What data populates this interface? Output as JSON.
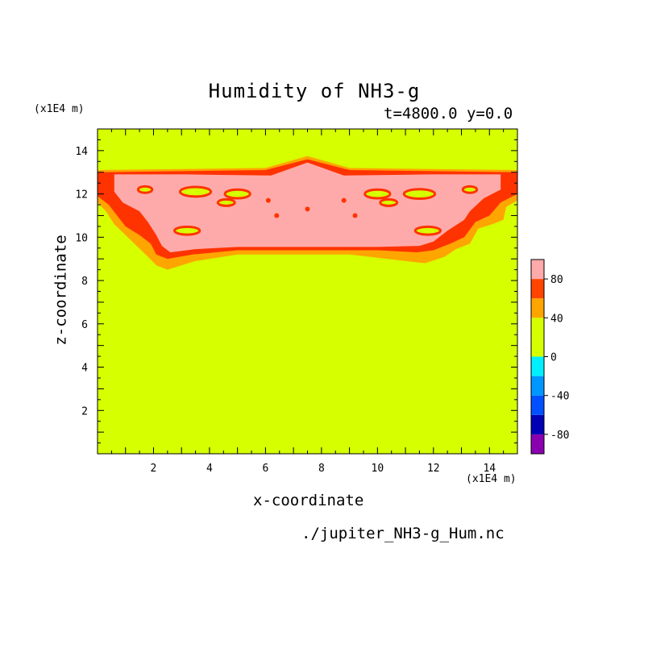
{
  "chart_data": {
    "type": "heatmap",
    "title": "Humidity of NH3-g",
    "subtitle": "t=4800.0 y=0.0",
    "xlabel": "x-coordinate",
    "ylabel": "z-coordinate",
    "x_unit": "(x1E4 m)",
    "y_unit": "(x1E4 m)",
    "source": "./jupiter_NH3-g_Hum.nc",
    "xlim": [
      0,
      15
    ],
    "ylim": [
      0,
      15
    ],
    "x_ticks": [
      2,
      4,
      6,
      8,
      10,
      12,
      14
    ],
    "y_ticks": [
      2,
      4,
      6,
      8,
      10,
      12,
      14
    ],
    "colorbar": {
      "range": [
        -100,
        100
      ],
      "tick_labels": [
        "80",
        "40",
        "0",
        "-40",
        "-80"
      ],
      "tick_values": [
        80,
        40,
        0,
        -40,
        -80
      ],
      "bins": [
        {
          "min": -100,
          "max": -80,
          "color": "#8a00b0"
        },
        {
          "min": -80,
          "max": -60,
          "color": "#0000b4"
        },
        {
          "min": -60,
          "max": -40,
          "color": "#0050ff"
        },
        {
          "min": -40,
          "max": -20,
          "color": "#0096ff"
        },
        {
          "min": -20,
          "max": 0,
          "color": "#00f0ff"
        },
        {
          "min": 0,
          "max": 20,
          "color": "#d6ff00"
        },
        {
          "min": 20,
          "max": 40,
          "color": "#d6ff00"
        },
        {
          "min": 40,
          "max": 60,
          "color": "#ffa500"
        },
        {
          "min": 60,
          "max": 80,
          "color": "#ff4500"
        },
        {
          "min": 80,
          "max": 100,
          "color": "#ffaaaa"
        }
      ]
    },
    "regions": [
      {
        "level": "orange (40-60)",
        "color": "#ffa500",
        "outline": [
          [
            0,
            13.1
          ],
          [
            3,
            13.15
          ],
          [
            6,
            13.2
          ],
          [
            7.5,
            13.75
          ],
          [
            9,
            13.2
          ],
          [
            12,
            13.15
          ],
          [
            15,
            13.1
          ],
          [
            15,
            11.7
          ],
          [
            14.6,
            11.4
          ],
          [
            14.5,
            10.8
          ],
          [
            14.1,
            10.6
          ],
          [
            13.6,
            10.4
          ],
          [
            13.3,
            9.7
          ],
          [
            12.8,
            9.45
          ],
          [
            12.4,
            9.1
          ],
          [
            11.7,
            8.8
          ],
          [
            11,
            8.9
          ],
          [
            9,
            9.2
          ],
          [
            7.5,
            9.2
          ],
          [
            5,
            9.2
          ],
          [
            3.5,
            8.9
          ],
          [
            2.5,
            8.5
          ],
          [
            2.1,
            8.7
          ],
          [
            1.8,
            9.1
          ],
          [
            1.4,
            9.6
          ],
          [
            1,
            10.1
          ],
          [
            0.6,
            10.6
          ],
          [
            0.3,
            11.2
          ],
          [
            0,
            11.6
          ]
        ]
      },
      {
        "level": "red (60-80)",
        "color": "#ff3300",
        "outline": [
          [
            0,
            13.0
          ],
          [
            3,
            13.05
          ],
          [
            6,
            13.1
          ],
          [
            7.5,
            13.6
          ],
          [
            9,
            13.1
          ],
          [
            12,
            13.05
          ],
          [
            15,
            13.0
          ],
          [
            15,
            12.0
          ],
          [
            14.4,
            11.6
          ],
          [
            14,
            11.0
          ],
          [
            13.5,
            10.7
          ],
          [
            13.1,
            10.0
          ],
          [
            12.6,
            9.7
          ],
          [
            12,
            9.4
          ],
          [
            11.4,
            9.3
          ],
          [
            10,
            9.4
          ],
          [
            7.5,
            9.4
          ],
          [
            5,
            9.4
          ],
          [
            3.4,
            9.2
          ],
          [
            2.5,
            9.0
          ],
          [
            2.1,
            9.2
          ],
          [
            1.9,
            9.7
          ],
          [
            1.5,
            10.1
          ],
          [
            1,
            10.5
          ],
          [
            0.7,
            11
          ],
          [
            0.4,
            11.5
          ],
          [
            0,
            11.9
          ]
        ]
      },
      {
        "level": "pink (80-100)",
        "color": "#ffaaaa",
        "outline": [
          [
            0.6,
            12.9
          ],
          [
            3.2,
            12.9
          ],
          [
            6.2,
            12.85
          ],
          [
            7.5,
            13.45
          ],
          [
            8.8,
            12.85
          ],
          [
            11.8,
            12.9
          ],
          [
            14.4,
            12.9
          ],
          [
            14.4,
            12.2
          ],
          [
            13.8,
            11.8
          ],
          [
            13.3,
            11.2
          ],
          [
            13.1,
            10.8
          ],
          [
            12.5,
            10.3
          ],
          [
            12,
            9.8
          ],
          [
            11.5,
            9.6
          ],
          [
            10,
            9.55
          ],
          [
            7.5,
            9.55
          ],
          [
            5,
            9.55
          ],
          [
            3.5,
            9.45
          ],
          [
            2.6,
            9.3
          ],
          [
            2.3,
            9.6
          ],
          [
            2.1,
            10.1
          ],
          [
            1.8,
            10.7
          ],
          [
            1.5,
            11.2
          ],
          [
            0.9,
            11.6
          ],
          [
            0.6,
            12.1
          ]
        ]
      }
    ]
  }
}
